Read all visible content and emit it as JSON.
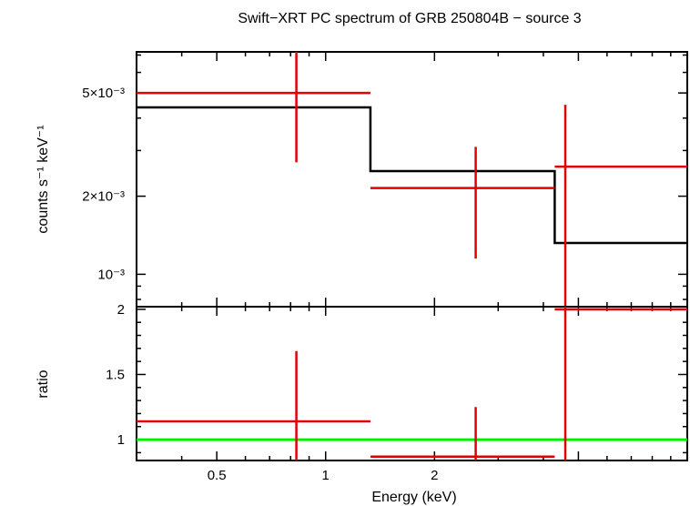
{
  "chart_data": [
    {
      "type": "scatter",
      "panel": "spectrum",
      "title": "Swift−XRT PC spectrum of GRB 250804B − source 3",
      "xlabel": "Energy (keV)",
      "ylabel": "counts s⁻¹ keV⁻¹",
      "xscale": "log",
      "yscale": "log",
      "xlim": [
        0.3,
        10
      ],
      "ylim": [
        0.00075,
        0.0072
      ],
      "yticks": [
        {
          "value": 0.005,
          "label": "5×10⁻³"
        },
        {
          "value": 0.002,
          "label": "2×10⁻³"
        },
        {
          "value": 0.001,
          "label": "10⁻³"
        }
      ],
      "series": [
        {
          "name": "data",
          "color": "#e00000",
          "points": [
            {
              "x": 0.83,
              "xlo": 0.3,
              "xhi": 1.33,
              "y": 0.005,
              "ylo": 0.0027,
              "yhi": 0.0074
            },
            {
              "x": 2.6,
              "xlo": 1.33,
              "xhi": 4.3,
              "y": 0.00215,
              "ylo": 0.00115,
              "yhi": 0.0031
            },
            {
              "x": 4.6,
              "xlo": 4.3,
              "xhi": 10,
              "y": 0.0026,
              "ylo": 0.0006,
              "yhi": 0.0045
            }
          ]
        },
        {
          "name": "model",
          "color": "#000000",
          "steps": [
            {
              "xlo": 0.3,
              "xhi": 1.33,
              "y": 0.0044
            },
            {
              "xlo": 1.33,
              "xhi": 4.3,
              "y": 0.0025
            },
            {
              "xlo": 4.3,
              "xhi": 10,
              "y": 0.00132
            }
          ]
        }
      ]
    },
    {
      "type": "scatter",
      "panel": "ratio",
      "xlabel": "Energy (keV)",
      "ylabel": "ratio",
      "xscale": "log",
      "xlim": [
        0.3,
        10
      ],
      "ylim": [
        0.84,
        2.02
      ],
      "xticks": [
        {
          "value": 0.5,
          "label": "0.5"
        },
        {
          "value": 1,
          "label": "1"
        },
        {
          "value": 2,
          "label": "2"
        }
      ],
      "yticks": [
        {
          "value": 1,
          "label": "1"
        },
        {
          "value": 1.5,
          "label": "1.5"
        },
        {
          "value": 2,
          "label": "2"
        }
      ],
      "reference_line": {
        "y": 1,
        "color": "#00ee00"
      },
      "series": [
        {
          "name": "ratio",
          "color": "#e00000",
          "points": [
            {
              "x": 0.83,
              "xlo": 0.3,
              "xhi": 1.33,
              "y": 1.14,
              "ylo": 0.84,
              "yhi": 1.68
            },
            {
              "x": 2.6,
              "xlo": 1.33,
              "xhi": 4.3,
              "y": 0.87,
              "ylo": 0.84,
              "yhi": 1.25
            },
            {
              "x": 4.6,
              "xlo": 4.3,
              "xhi": 10,
              "y": 2.0,
              "ylo": 0.84,
              "yhi": 2.02
            }
          ]
        }
      ]
    }
  ]
}
